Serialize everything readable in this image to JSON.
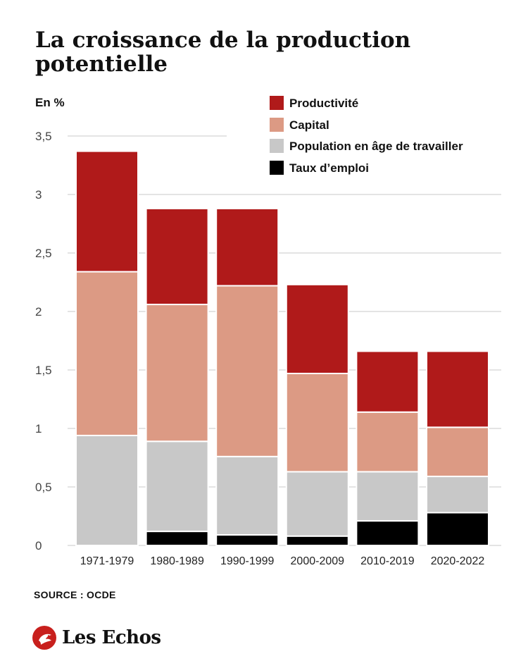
{
  "title": "La croissance de la production potentielle",
  "source": "SOURCE : OCDE",
  "brand": "Les Echos",
  "chart_data": {
    "type": "bar",
    "stacked": true,
    "ylabel": "En %",
    "ylim": [
      0,
      3.5
    ],
    "yticks": [
      "0",
      "0,5",
      "1",
      "1,5",
      "2",
      "2,5",
      "3",
      "3,5"
    ],
    "grid": true,
    "legend_position": "top-right",
    "categories": [
      "1971-1979",
      "1980-1989",
      "1990-1999",
      "2000-2009",
      "2010-2019",
      "2020-2022"
    ],
    "series": [
      {
        "name": "Taux d’emploi",
        "color": "#000000",
        "values": [
          0.0,
          0.12,
          0.09,
          0.08,
          0.21,
          0.28
        ]
      },
      {
        "name": "Population en âge de travailler",
        "color": "#c8c8c8",
        "values": [
          0.94,
          0.77,
          0.67,
          0.55,
          0.42,
          0.31
        ]
      },
      {
        "name": "Capital",
        "color": "#dc9a84",
        "values": [
          1.4,
          1.17,
          1.46,
          0.84,
          0.51,
          0.42
        ]
      },
      {
        "name": "Productivité",
        "color": "#b01a1a",
        "values": [
          1.03,
          0.82,
          0.66,
          0.76,
          0.52,
          0.65
        ]
      }
    ],
    "legend_order": [
      3,
      2,
      1,
      0
    ]
  }
}
